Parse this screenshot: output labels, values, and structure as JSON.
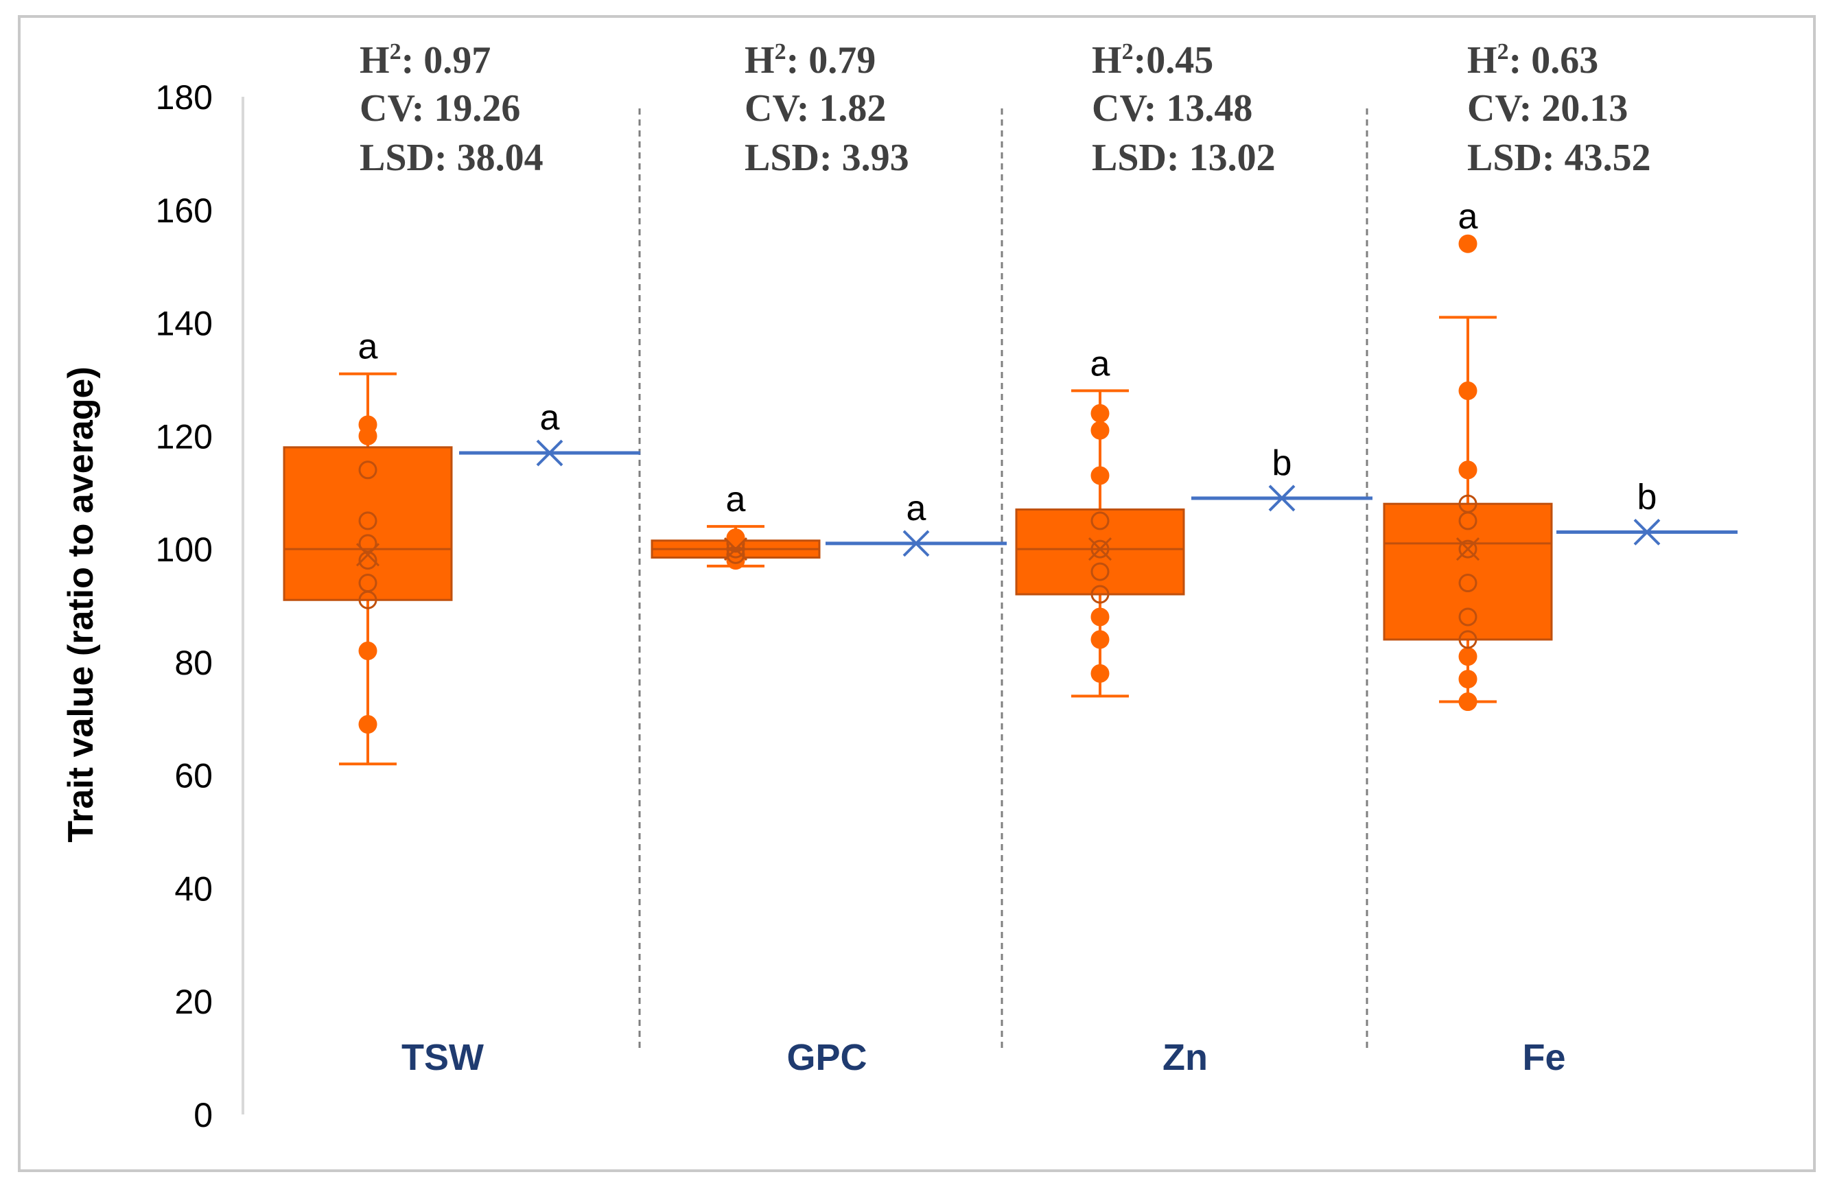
{
  "chart_data": {
    "type": "box",
    "ylabel": "Trait value (ratio to average)",
    "ylim": [
      0,
      180
    ],
    "yticks": [
      0,
      20,
      40,
      60,
      80,
      100,
      120,
      140,
      160,
      180
    ],
    "grid": false,
    "categories": [
      "TSW",
      "GPC",
      "Zn",
      "Fe"
    ],
    "colors": {
      "box": "#ff6600",
      "box_edge": "#c0500d",
      "mean_line": "#4472c4",
      "divider": "#7f7f7f",
      "category": "#1f3b70",
      "stats": "#404040"
    },
    "stats": [
      {
        "h2": "0.97",
        "cv": "19.26",
        "lsd": "38.04"
      },
      {
        "h2": "0.79",
        "cv": "1.82",
        "lsd": "3.93"
      },
      {
        "h2": "0.45",
        "cv": "13.48",
        "lsd": "13.02"
      },
      {
        "h2": "0.63",
        "cv": "20.13",
        "lsd": "43.52"
      }
    ],
    "stat_labels": {
      "h": "H",
      "h_sup": "2",
      "cv": "CV",
      "lsd": "LSD"
    },
    "boxes": [
      {
        "name": "TSW",
        "whisker_low": 62,
        "q1": 91,
        "median": 100,
        "q3": 118,
        "whisker_high": 131,
        "mean": 99,
        "points": [
          69,
          82,
          91,
          94,
          98,
          101,
          105,
          114,
          120,
          122
        ],
        "sig": "a"
      },
      {
        "name": "GPC",
        "whisker_low": 97,
        "q1": 98.5,
        "median": 100,
        "q3": 101.5,
        "whisker_high": 104,
        "mean": 100,
        "points": [
          98,
          99,
          100,
          101,
          102
        ],
        "sig": "a"
      },
      {
        "name": "Zn",
        "whisker_low": 74,
        "q1": 92,
        "median": 100,
        "q3": 107,
        "whisker_high": 128,
        "mean": 100,
        "points": [
          78,
          84,
          88,
          92,
          96,
          100,
          105,
          113,
          121,
          124
        ],
        "sig": "a"
      },
      {
        "name": "Fe",
        "whisker_low": 73,
        "q1": 84,
        "median": 101,
        "q3": 108,
        "whisker_high": 141,
        "mean": 100,
        "points": [
          73,
          77,
          81,
          84,
          88,
          94,
          100,
          105,
          108,
          114,
          128,
          154
        ],
        "sig": "a"
      }
    ],
    "reference": [
      {
        "name": "TSW",
        "value": 117,
        "sig": "a"
      },
      {
        "name": "GPC",
        "value": 101,
        "sig": "a"
      },
      {
        "name": "Zn",
        "value": 109,
        "sig": "b"
      },
      {
        "name": "Fe",
        "value": 103,
        "sig": "b"
      }
    ]
  }
}
